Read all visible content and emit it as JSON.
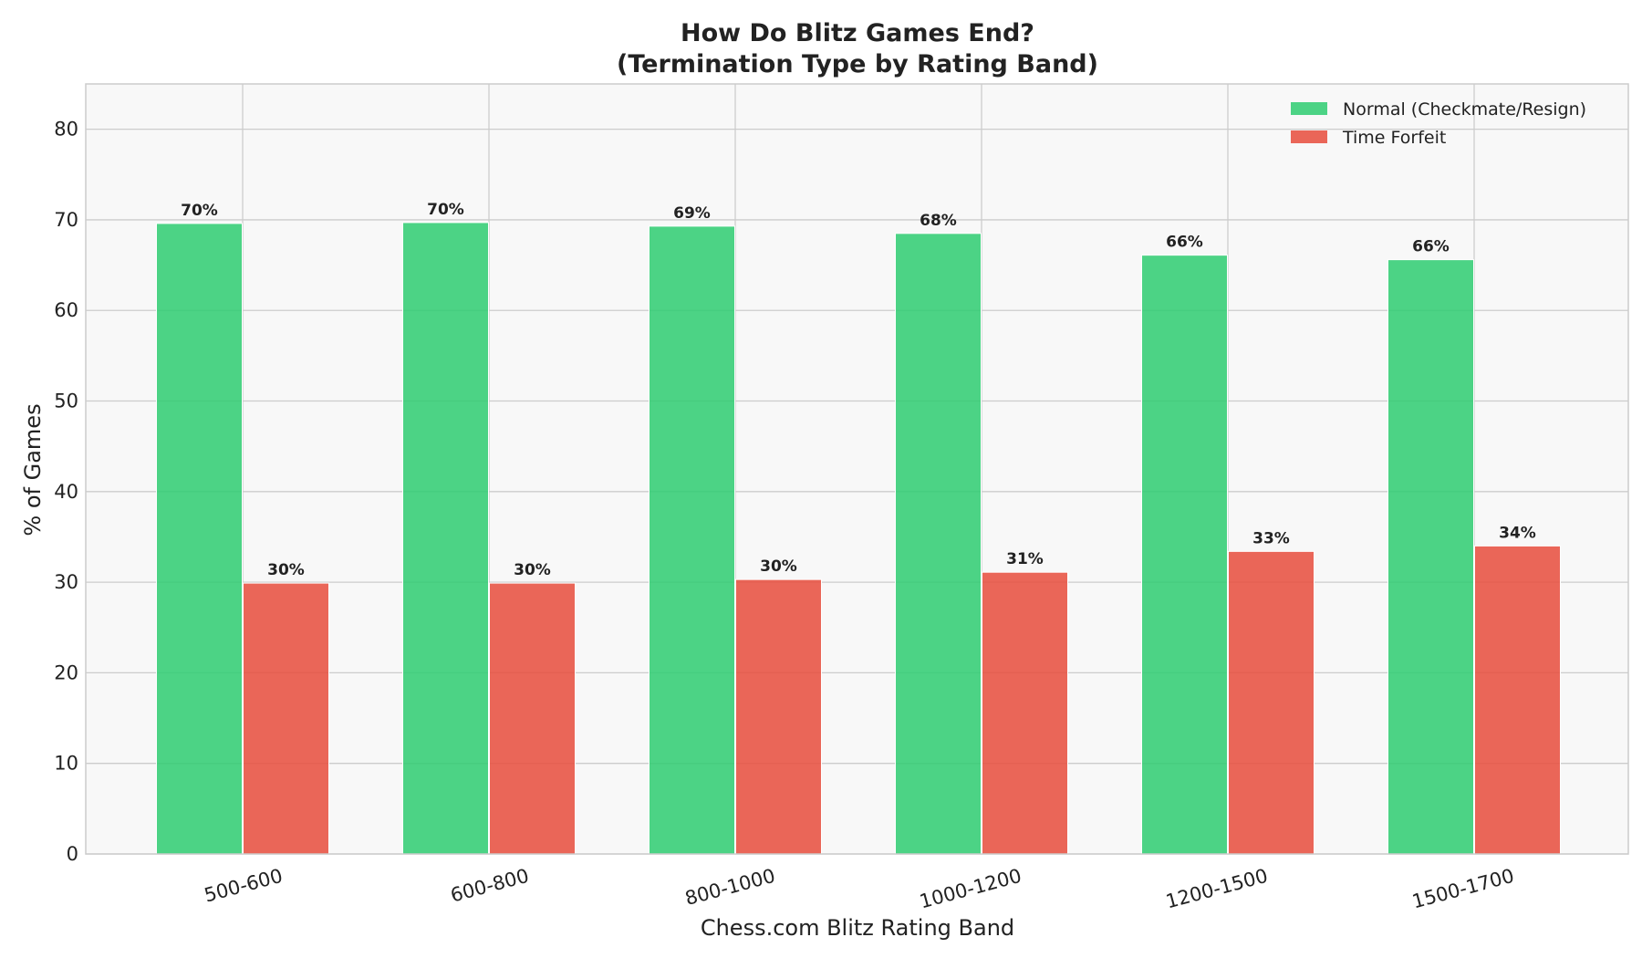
{
  "chart_data": {
    "type": "bar",
    "title": "How Do Blitz Games End?",
    "subtitle": "(Termination Type by Rating Band)",
    "xlabel": "Chess.com Blitz Rating Band",
    "ylabel": "% of Games",
    "categories": [
      "500-600",
      "600-800",
      "800-1000",
      "1000-1200",
      "1200-1500",
      "1500-1700"
    ],
    "series": [
      {
        "name": "Normal (Checkmate/Resign)",
        "color": "#2ecc71",
        "values": [
          69.6,
          69.7,
          69.3,
          68.5,
          66.1,
          65.6
        ],
        "labels": [
          "70%",
          "70%",
          "69%",
          "68%",
          "66%",
          "66%"
        ]
      },
      {
        "name": "Time Forfeit",
        "color": "#e74c3c",
        "values": [
          29.9,
          29.9,
          30.3,
          31.1,
          33.4,
          34.0
        ],
        "labels": [
          "30%",
          "30%",
          "30%",
          "31%",
          "33%",
          "34%"
        ]
      }
    ],
    "ylim": [
      0,
      85
    ],
    "yticks": [
      0,
      10,
      20,
      30,
      40,
      50,
      60,
      70,
      80
    ],
    "grid": true,
    "legend_position": "top-right",
    "xtick_rotation_deg": -15
  }
}
